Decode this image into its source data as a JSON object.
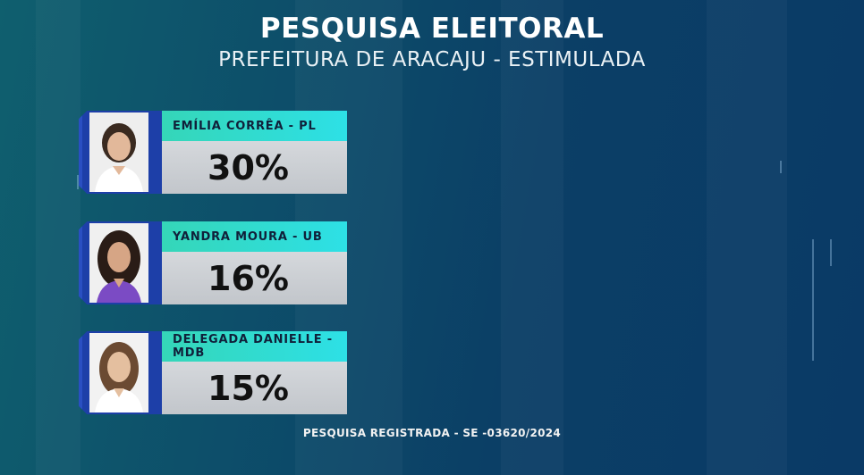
{
  "header": {
    "title": "PESQUISA ELEITORAL",
    "subtitle": "PREFEITURA DE  ARACAJU - ESTIMULADA"
  },
  "candidates": [
    {
      "name": "EMÍLIA CORRÊA - PL",
      "percent": "30%",
      "value": 30
    },
    {
      "name": "YANDRA MOURA  - UB",
      "percent": "16%",
      "value": 16
    },
    {
      "name": "DELEGADA DANIELLE - MDB",
      "percent": "15%",
      "value": 15
    }
  ],
  "footer": {
    "registration": "PESQUISA REGISTRADA - SE -03620/2024"
  },
  "colors": {
    "name_bar": "#2de0e6",
    "photo_frame": "#1d3fa8",
    "percent_box": "#c8cbcf"
  }
}
